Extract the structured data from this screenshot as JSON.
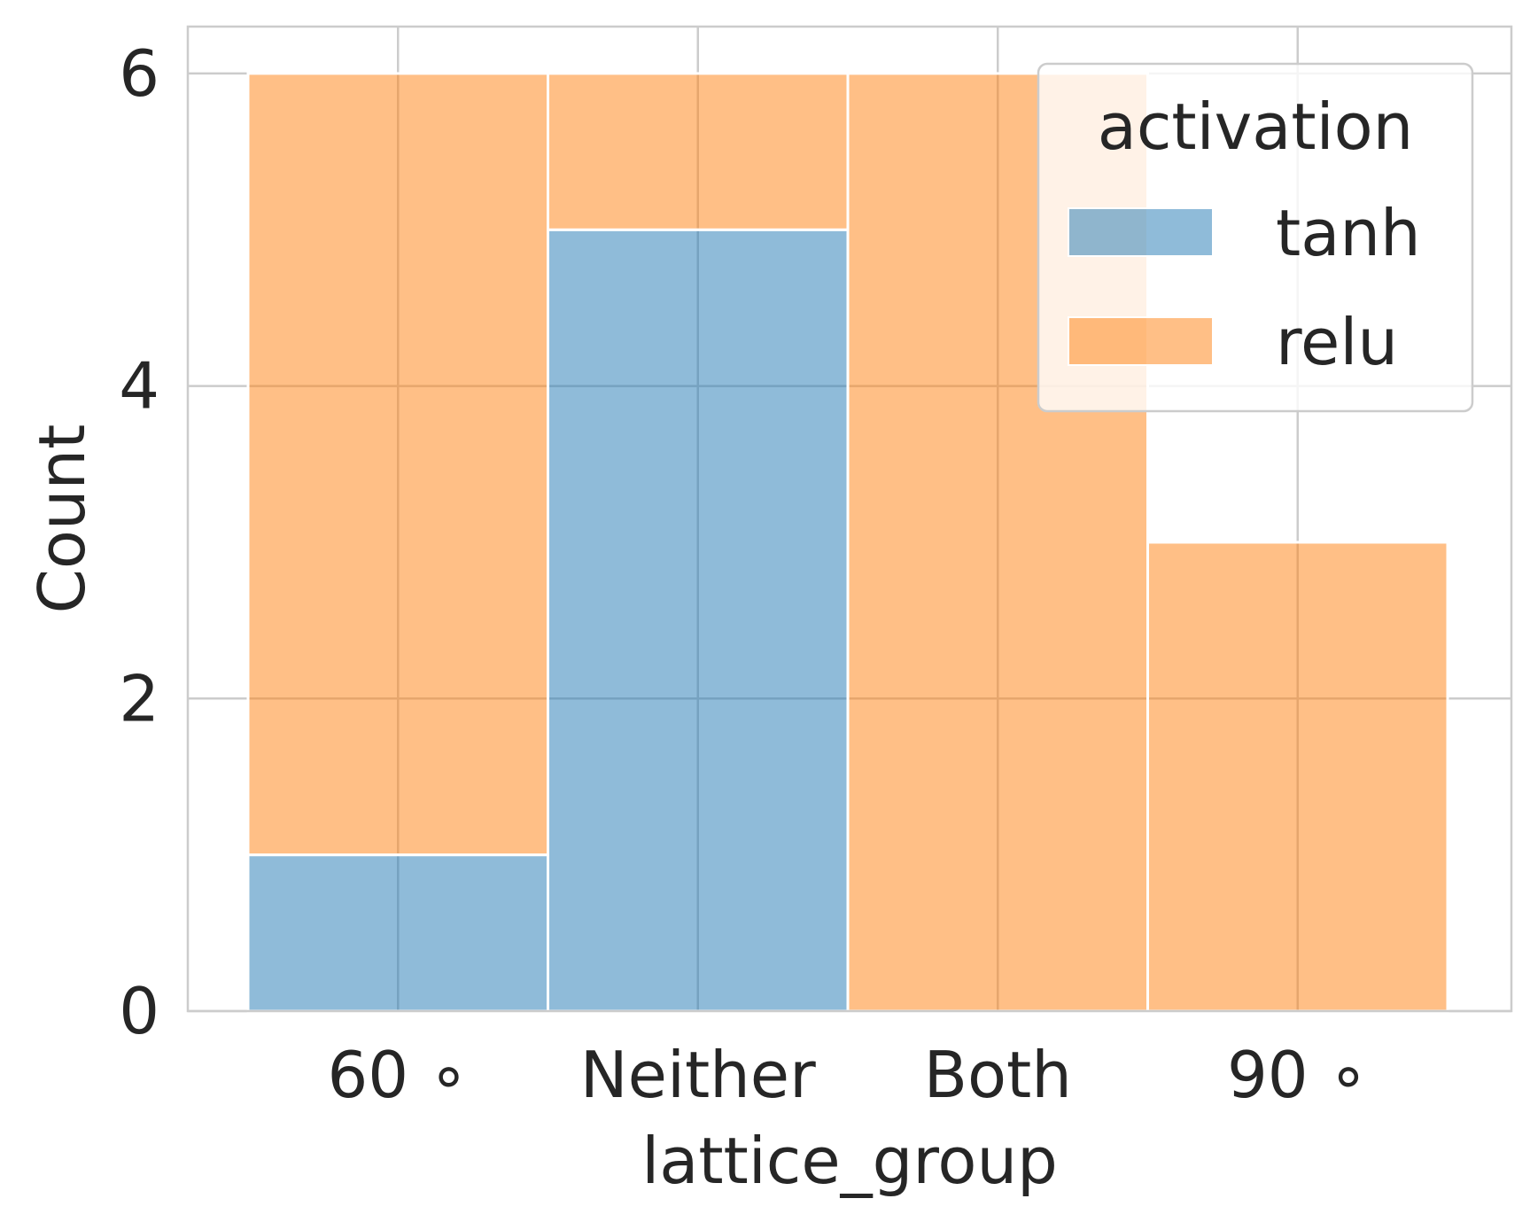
{
  "chart_data": {
    "type": "bar",
    "stacked": true,
    "xlabel": "lattice_group",
    "ylabel": "Count",
    "categories": [
      "60 ∘",
      "Neither",
      "Both",
      "90 ∘"
    ],
    "series": [
      {
        "name": "tanh",
        "values": [
          1,
          5,
          0,
          0
        ],
        "color": "#1f77b4"
      },
      {
        "name": "relu",
        "values": [
          5,
          1,
          6,
          3
        ],
        "color": "#ff7f0e"
      }
    ],
    "ylim": [
      0,
      6.3
    ],
    "yticks": [
      0,
      2,
      4,
      6
    ],
    "grid": true,
    "bar_alpha": 0.5,
    "legend": {
      "title": "activation",
      "placement": "top-right",
      "entries": [
        "tanh",
        "relu"
      ]
    }
  }
}
